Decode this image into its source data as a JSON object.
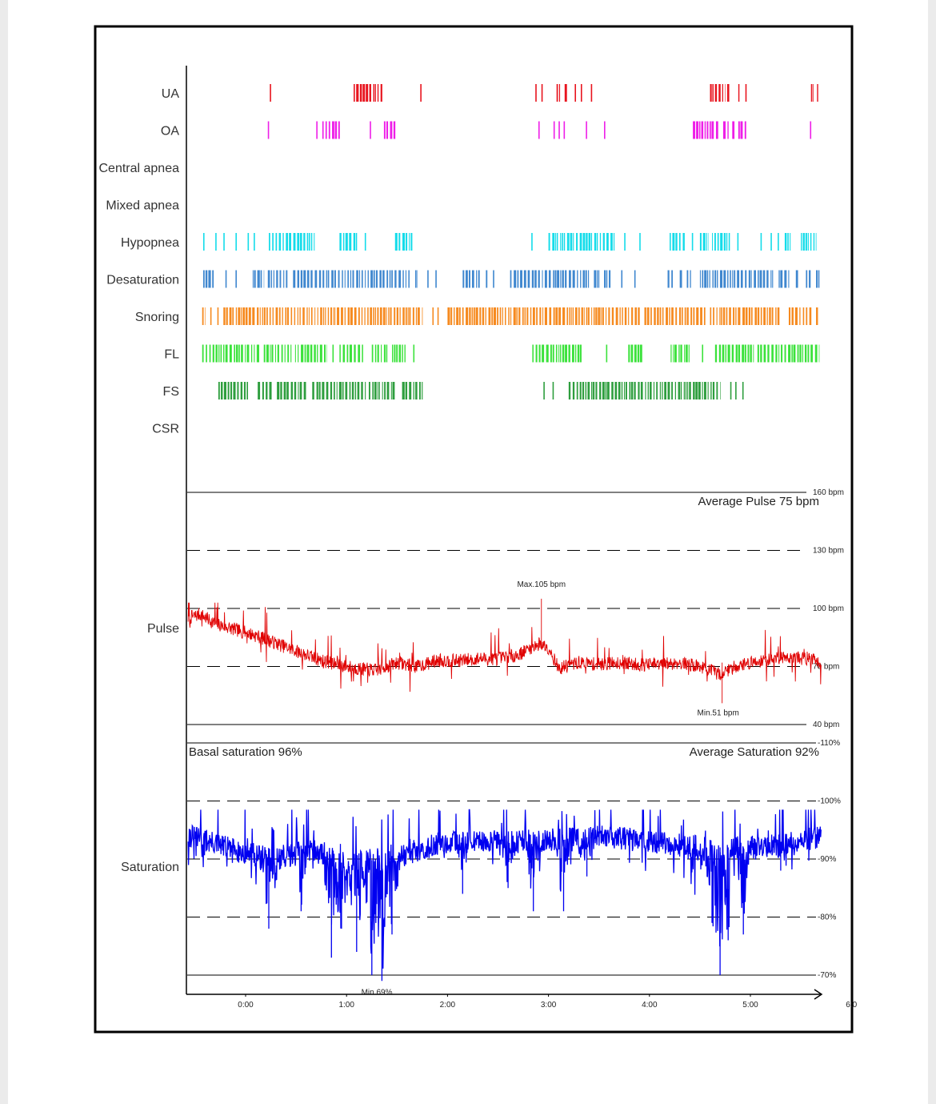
{
  "chart_data": {
    "type": "line",
    "x_axis": {
      "unit": "hh:mm",
      "ticks": [
        "0:00",
        "1:00",
        "2:00",
        "3:00",
        "4:00",
        "5:00",
        "6:0"
      ],
      "range_hours": [
        -0.57,
        5.7
      ]
    },
    "event_rows": [
      {
        "label": "UA",
        "color": "#e8141e",
        "events": [
          [
            0.24,
            0.24
          ],
          [
            1.07,
            1.35
          ],
          [
            1.73,
            1.73
          ],
          [
            2.87,
            2.88
          ],
          [
            2.93,
            2.94
          ],
          [
            3.08,
            3.12
          ],
          [
            3.16,
            3.19
          ],
          [
            3.26,
            3.27
          ],
          [
            3.32,
            3.33
          ],
          [
            3.42,
            3.42
          ],
          [
            4.6,
            4.75
          ],
          [
            4.77,
            4.8
          ],
          [
            4.88,
            4.9
          ],
          [
            4.95,
            4.96
          ],
          [
            5.6,
            5.62
          ],
          [
            5.66,
            5.68
          ]
        ]
      },
      {
        "label": "OA",
        "color": "#ee1ee8",
        "events": [
          [
            0.22,
            0.22
          ],
          [
            0.7,
            0.7
          ],
          [
            0.76,
            0.94
          ],
          [
            1.23,
            1.24
          ],
          [
            1.37,
            1.48
          ],
          [
            2.9,
            2.9
          ],
          [
            3.05,
            3.05
          ],
          [
            3.1,
            3.1
          ],
          [
            3.15,
            3.15
          ],
          [
            3.37,
            3.37
          ],
          [
            3.55,
            3.55
          ],
          [
            4.43,
            4.68
          ],
          [
            4.73,
            4.78
          ],
          [
            4.82,
            4.85
          ],
          [
            4.88,
            4.96
          ],
          [
            5.59,
            5.59
          ]
        ]
      },
      {
        "label": "Central apnea",
        "color": "#00aaaa",
        "events": []
      },
      {
        "label": "Mixed apnea",
        "color": "#8a2be2",
        "events": []
      },
      {
        "label": "Hypopnea",
        "color": "#14dcea",
        "events": [
          [
            -0.42,
            -0.42
          ],
          [
            -0.3,
            -0.3
          ],
          [
            -0.22,
            -0.22
          ],
          [
            -0.1,
            -0.1
          ],
          [
            0.02,
            0.02
          ],
          [
            0.08,
            0.08
          ],
          [
            0.23,
            0.68
          ],
          [
            0.93,
            1.1
          ],
          [
            1.18,
            1.18
          ],
          [
            1.48,
            1.65
          ],
          [
            2.83,
            2.83
          ],
          [
            3.0,
            3.65
          ],
          [
            3.75,
            3.75
          ],
          [
            3.9,
            3.9
          ],
          [
            4.2,
            4.35
          ],
          [
            4.42,
            4.42
          ],
          [
            4.5,
            4.58
          ],
          [
            4.62,
            4.8
          ],
          [
            4.87,
            4.87
          ],
          [
            5.1,
            5.1
          ],
          [
            5.2,
            5.2
          ],
          [
            5.27,
            5.27
          ],
          [
            5.34,
            5.4
          ],
          [
            5.5,
            5.65
          ]
        ]
      },
      {
        "label": "Desaturation",
        "color": "#3f87cf",
        "events": [
          [
            -0.42,
            -0.32
          ],
          [
            -0.2,
            -0.2
          ],
          [
            -0.1,
            -0.1
          ],
          [
            0.07,
            0.18
          ],
          [
            0.22,
            0.42
          ],
          [
            0.47,
            1.62
          ],
          [
            1.68,
            1.7
          ],
          [
            1.8,
            1.8
          ],
          [
            1.88,
            1.88
          ],
          [
            2.15,
            2.32
          ],
          [
            2.38,
            2.4
          ],
          [
            2.45,
            2.47
          ],
          [
            2.62,
            3.4
          ],
          [
            3.45,
            3.5
          ],
          [
            3.55,
            3.62
          ],
          [
            3.72,
            3.72
          ],
          [
            3.85,
            3.85
          ],
          [
            4.18,
            4.24
          ],
          [
            4.3,
            4.32
          ],
          [
            4.37,
            4.42
          ],
          [
            4.5,
            5.23
          ],
          [
            5.28,
            5.38
          ],
          [
            5.45,
            5.47
          ],
          [
            5.55,
            5.6
          ],
          [
            5.65,
            5.68
          ]
        ]
      },
      {
        "label": "Snoring",
        "color": "#f68a1f",
        "events": [
          [
            -0.43,
            -0.4
          ],
          [
            -0.35,
            -0.35
          ],
          [
            -0.28,
            -0.28
          ],
          [
            -0.22,
            1.75
          ],
          [
            1.85,
            1.85
          ],
          [
            1.9,
            1.9
          ],
          [
            2.0,
            3.9
          ],
          [
            3.95,
            4.55
          ],
          [
            4.6,
            5.3
          ],
          [
            5.38,
            5.5
          ],
          [
            5.52,
            5.53
          ],
          [
            5.55,
            5.6
          ],
          [
            5.65,
            5.67
          ]
        ]
      },
      {
        "label": "FL",
        "color": "#3be23b",
        "events": [
          [
            -0.43,
            0.14
          ],
          [
            0.18,
            0.45
          ],
          [
            0.49,
            0.8
          ],
          [
            0.86,
            0.86
          ],
          [
            0.93,
            1.16
          ],
          [
            1.25,
            1.4
          ],
          [
            1.45,
            1.58
          ],
          [
            1.66,
            1.66
          ],
          [
            2.84,
            3.33
          ],
          [
            3.57,
            3.57
          ],
          [
            3.79,
            3.93
          ],
          [
            4.21,
            4.4
          ],
          [
            4.52,
            4.52
          ],
          [
            4.65,
            5.03
          ],
          [
            5.07,
            5.68
          ]
        ]
      },
      {
        "label": "FS",
        "color": "#2e9e3e",
        "events": [
          [
            -0.27,
            0.02
          ],
          [
            0.12,
            0.26
          ],
          [
            0.31,
            0.6
          ],
          [
            0.66,
            1.2
          ],
          [
            1.22,
            1.48
          ],
          [
            1.55,
            1.75
          ],
          [
            2.95,
            2.95
          ],
          [
            3.04,
            3.04
          ],
          [
            3.2,
            4.7
          ],
          [
            4.8,
            4.8
          ],
          [
            4.85,
            4.85
          ],
          [
            4.92,
            4.92
          ]
        ]
      },
      {
        "label": "CSR",
        "color": "#7b3fb0",
        "events": []
      }
    ],
    "pulse": {
      "label": "Pulse",
      "unit": "bpm",
      "ylim": [
        40,
        160
      ],
      "y_ticks": [
        "160 bpm",
        "130 bpm",
        "100 bpm",
        "70 bpm",
        "40 bpm"
      ],
      "average_text": "Average Pulse 75 bpm",
      "max_text": "Max.105 bpm",
      "min_text": "Min.51 bpm",
      "max_point": [
        2.93,
        105
      ],
      "min_point": [
        4.72,
        51
      ],
      "color": "#e00000",
      "trend": [
        [
          -0.57,
          95
        ],
        [
          -0.45,
          97
        ],
        [
          -0.3,
          92
        ],
        [
          -0.1,
          89
        ],
        [
          0.1,
          86
        ],
        [
          0.3,
          82
        ],
        [
          0.5,
          78
        ],
        [
          0.7,
          74
        ],
        [
          0.9,
          71
        ],
        [
          1.1,
          69
        ],
        [
          1.3,
          68
        ],
        [
          1.5,
          72
        ],
        [
          1.7,
          70
        ],
        [
          1.9,
          73
        ],
        [
          2.1,
          73
        ],
        [
          2.3,
          74
        ],
        [
          2.5,
          74
        ],
        [
          2.7,
          76
        ],
        [
          2.9,
          82
        ],
        [
          3.0,
          80
        ],
        [
          3.1,
          69
        ],
        [
          3.3,
          72
        ],
        [
          3.5,
          71
        ],
        [
          3.7,
          72
        ],
        [
          3.9,
          71
        ],
        [
          4.1,
          71
        ],
        [
          4.3,
          72
        ],
        [
          4.5,
          70
        ],
        [
          4.7,
          66
        ],
        [
          4.85,
          70
        ],
        [
          5.0,
          72
        ],
        [
          5.2,
          74
        ],
        [
          5.4,
          75
        ],
        [
          5.6,
          74
        ],
        [
          5.7,
          72
        ]
      ]
    },
    "saturation": {
      "label": "Saturation",
      "unit": "%",
      "ylim": [
        70,
        110
      ],
      "y_ticks": [
        "-110%",
        "-100%",
        "-90%",
        "-80%",
        "-70%"
      ],
      "basal_text": "Basal saturation 96%",
      "average_text": "Average Saturation 92%",
      "min_text": "Min.69%",
      "min_point": [
        1.3,
        69
      ],
      "color": "#0000f0",
      "baseline": [
        [
          -0.57,
          94
        ],
        [
          0.0,
          91
        ],
        [
          0.3,
          90
        ],
        [
          0.6,
          92
        ],
        [
          1.0,
          89
        ],
        [
          1.6,
          91
        ],
        [
          2.0,
          93
        ],
        [
          2.5,
          93
        ],
        [
          3.0,
          93
        ],
        [
          3.5,
          94
        ],
        [
          4.0,
          93
        ],
        [
          4.5,
          92
        ],
        [
          5.0,
          92
        ],
        [
          5.5,
          93
        ],
        [
          5.7,
          94
        ]
      ],
      "dips": [
        [
          0.23,
          78
        ],
        [
          0.55,
          81
        ],
        [
          0.85,
          73
        ],
        [
          0.95,
          78
        ],
        [
          1.1,
          74
        ],
        [
          1.25,
          70
        ],
        [
          1.35,
          69
        ],
        [
          1.45,
          77
        ],
        [
          2.15,
          84
        ],
        [
          2.6,
          85
        ],
        [
          2.85,
          81
        ],
        [
          3.15,
          81
        ],
        [
          3.38,
          87
        ],
        [
          4.45,
          84
        ],
        [
          4.62,
          79
        ],
        [
          4.7,
          70
        ],
        [
          4.78,
          76
        ],
        [
          4.93,
          77
        ],
        [
          5.3,
          88
        ]
      ]
    }
  }
}
